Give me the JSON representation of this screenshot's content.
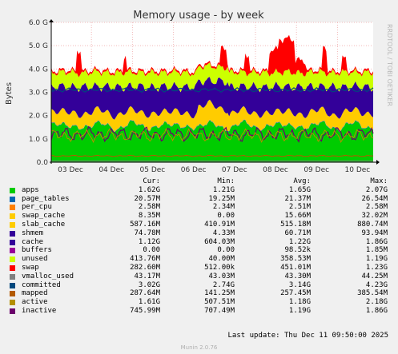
{
  "chart_data": {
    "type": "area",
    "title": "Memory usage - by week",
    "ylabel": "Bytes",
    "ylim": [
      0,
      6.0
    ],
    "y_unit": "G",
    "y_ticks": [
      "0.0",
      "1.0 G",
      "2.0 G",
      "3.0 G",
      "4.0 G",
      "5.0 G",
      "6.0 G"
    ],
    "x_ticks": [
      "03 Dec",
      "04 Dec",
      "05 Dec",
      "06 Dec",
      "07 Dec",
      "08 Dec",
      "09 Dec",
      "10 Dec"
    ],
    "watermark": "RRDTOOL / TOBI OETIKER",
    "stack": [
      {
        "name": "apps",
        "color": "#00cc00"
      },
      {
        "name": "page_tables",
        "color": "#0066b3"
      },
      {
        "name": "per_cpu",
        "color": "#ff8000"
      },
      {
        "name": "swap_cache",
        "color": "#ffcc00"
      },
      {
        "name": "slab_cache",
        "color": "#ffcc00"
      },
      {
        "name": "shmem",
        "color": "#330099"
      },
      {
        "name": "cache",
        "color": "#330099"
      },
      {
        "name": "buffers",
        "color": "#990099"
      },
      {
        "name": "unused",
        "color": "#ccff00"
      },
      {
        "name": "swap",
        "color": "#ff0000"
      }
    ],
    "series": [
      {
        "name": "apps",
        "color": "#00cc00",
        "cur": "1.62G",
        "min": "1.21G",
        "avg": "1.65G",
        "max": "2.07G"
      },
      {
        "name": "page_tables",
        "color": "#0066b3",
        "cur": "20.57M",
        "min": "19.25M",
        "avg": "21.37M",
        "max": "26.54M"
      },
      {
        "name": "per_cpu",
        "color": "#ff8000",
        "cur": "2.58M",
        "min": "2.34M",
        "avg": "2.51M",
        "max": "2.58M"
      },
      {
        "name": "swap_cache",
        "color": "#ffcc00",
        "cur": "8.35M",
        "min": "0.00",
        "avg": "15.66M",
        "max": "32.02M"
      },
      {
        "name": "slab_cache",
        "color": "#ffcc00",
        "cur": "587.16M",
        "min": "410.91M",
        "avg": "515.18M",
        "max": "880.74M"
      },
      {
        "name": "shmem",
        "color": "#330099",
        "cur": "74.78M",
        "min": "4.33M",
        "avg": "60.71M",
        "max": "93.94M"
      },
      {
        "name": "cache",
        "color": "#330099",
        "cur": "1.12G",
        "min": "604.03M",
        "avg": "1.22G",
        "max": "1.86G"
      },
      {
        "name": "buffers",
        "color": "#990099",
        "cur": "0.00",
        "min": "0.00",
        "avg": "98.52k",
        "max": "1.85M"
      },
      {
        "name": "unused",
        "color": "#ccff00",
        "cur": "413.76M",
        "min": "40.00M",
        "avg": "358.53M",
        "max": "1.19G"
      },
      {
        "name": "swap",
        "color": "#ff0000",
        "cur": "282.60M",
        "min": "512.00k",
        "avg": "451.01M",
        "max": "1.23G"
      },
      {
        "name": "vmalloc_used",
        "color": "#808080",
        "cur": "43.17M",
        "min": "43.03M",
        "avg": "43.30M",
        "max": "44.25M"
      },
      {
        "name": "committed",
        "color": "#00487d",
        "cur": "3.02G",
        "min": "2.74G",
        "avg": "3.14G",
        "max": "4.23G"
      },
      {
        "name": "mapped",
        "color": "#b35a00",
        "cur": "287.64M",
        "min": "141.25M",
        "avg": "257.45M",
        "max": "385.54M"
      },
      {
        "name": "active",
        "color": "#b38f00",
        "cur": "1.61G",
        "min": "507.51M",
        "avg": "1.18G",
        "max": "2.18G"
      },
      {
        "name": "inactive",
        "color": "#6b006b",
        "cur": "745.99M",
        "min": "707.49M",
        "avg": "1.19G",
        "max": "1.86G"
      }
    ]
  },
  "legend_header": {
    "cur": "Cur:",
    "min": "Min:",
    "avg": "Avg:",
    "max": "Max:"
  },
  "last_update": "Last update: Thu Dec 11 09:50:00 2025",
  "footer": "Munin 2.0.76"
}
